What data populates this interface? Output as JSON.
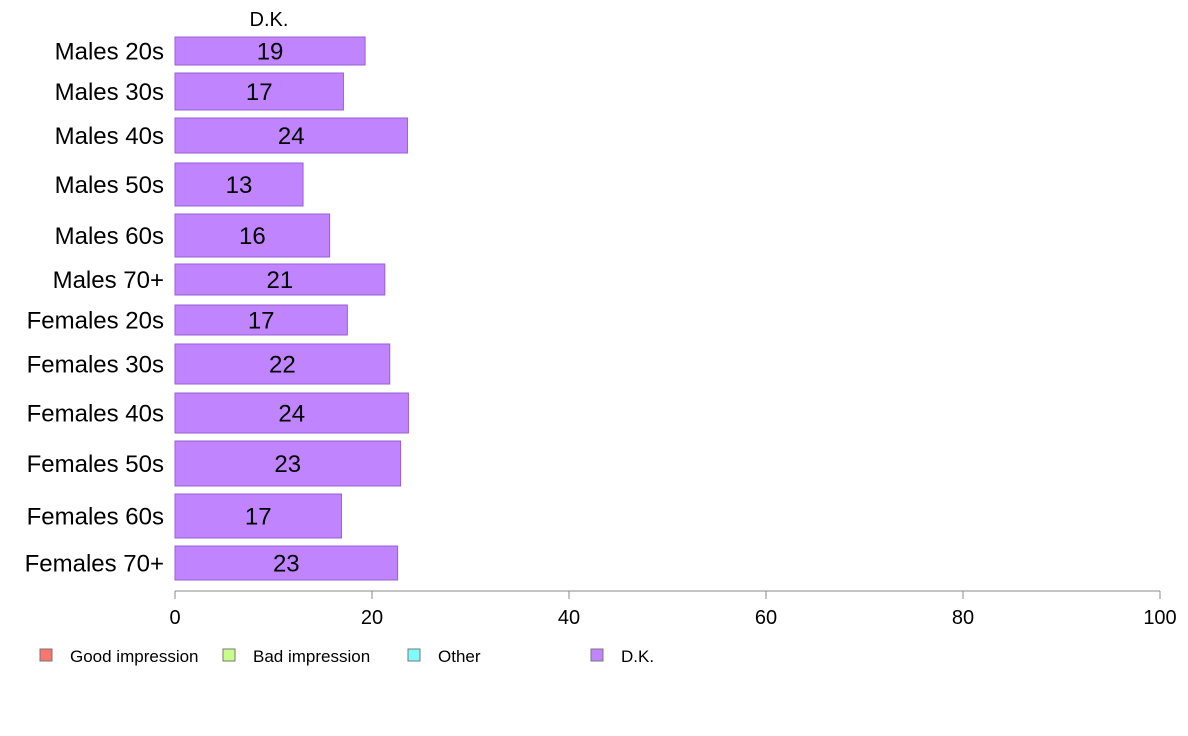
{
  "chart_data": {
    "type": "bar",
    "orientation": "horizontal",
    "stacked": true,
    "categories": [
      "Males 20s",
      "Males 30s",
      "Males 40s",
      "Males 50s",
      "Males 60s",
      "Males 70+",
      "Females 20s",
      "Females 30s",
      "Females 40s",
      "Females 50s",
      "Females 60s",
      "Females 70+"
    ],
    "series": [
      {
        "name": "Good impression",
        "color": "#f8766d",
        "values": [
          0,
          0,
          0,
          0,
          0,
          0,
          0,
          0,
          0,
          0,
          0,
          0
        ]
      },
      {
        "name": "Bad impression",
        "color": "#c6ff8c",
        "values": [
          0,
          0,
          0,
          0,
          0,
          0,
          0,
          0,
          0,
          0,
          0,
          0
        ]
      },
      {
        "name": "Other",
        "color": "#7ffcfc",
        "values": [
          0,
          0,
          0,
          0,
          0,
          0,
          0,
          0,
          0,
          0,
          0,
          0
        ]
      },
      {
        "name": "D.K.",
        "color": "#c084ff",
        "values": [
          19.3,
          17.1,
          23.6,
          13.0,
          15.7,
          21.3,
          17.5,
          21.8,
          23.7,
          22.9,
          16.9,
          22.6
        ]
      }
    ],
    "data_labels": [
      "19",
      "17",
      "24",
      "13",
      "16",
      "21",
      "17",
      "22",
      "24",
      "23",
      "17",
      "23"
    ],
    "series_title": "D.K.",
    "xlim": [
      0,
      100
    ],
    "xticks": [
      0,
      20,
      40,
      60,
      80,
      100
    ],
    "xticklabels": [
      "0",
      "20",
      "40",
      "60",
      "80",
      "100"
    ],
    "grid": false,
    "legend_position": "bottom"
  }
}
